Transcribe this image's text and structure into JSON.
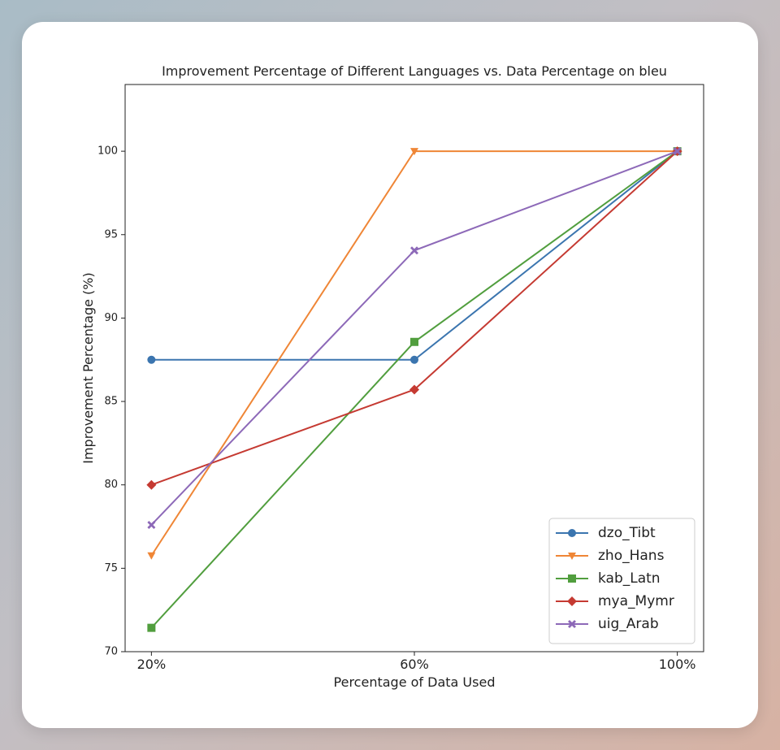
{
  "chart_data": {
    "type": "line",
    "title": "Improvement Percentage of Different Languages vs. Data Percentage on bleu",
    "x_label": "Percentage of Data Used",
    "y_label": "Improvement Percentage (%)",
    "categories": [
      "20%",
      "60%",
      "100%"
    ],
    "ylim": [
      70,
      104
    ],
    "yticks": [
      70,
      75,
      80,
      85,
      90,
      95,
      100
    ],
    "grid": false,
    "legend": "lower right",
    "series": [
      {
        "name": "dzo_Tibt",
        "color": "#3b75af",
        "marker": "circle",
        "values": [
          87.5,
          87.5,
          100
        ]
      },
      {
        "name": "zho_Hans",
        "color": "#ef8636",
        "marker": "triangle-down",
        "values": [
          75.76,
          100,
          100
        ]
      },
      {
        "name": "kab_Latn",
        "color": "#519e3e",
        "marker": "square",
        "values": [
          71.43,
          88.57,
          100
        ]
      },
      {
        "name": "mya_Mymr",
        "color": "#c53a32",
        "marker": "diamond",
        "values": [
          80,
          85.71,
          100
        ]
      },
      {
        "name": "uig_Arab",
        "color": "#8d69b8",
        "marker": "x",
        "values": [
          77.6,
          94.05,
          100
        ]
      }
    ]
  }
}
